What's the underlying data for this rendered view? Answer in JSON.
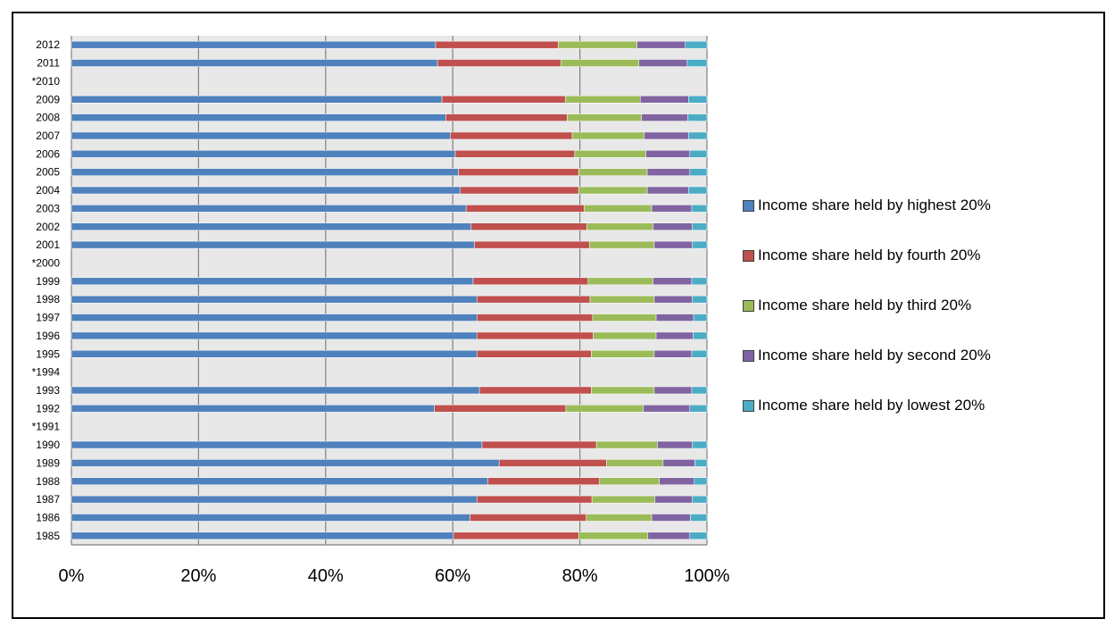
{
  "chart_data": {
    "type": "bar",
    "orientation": "horizontal",
    "stacked": "percent",
    "categories": [
      "2012",
      "2011",
      "*2010",
      "2009",
      "2008",
      "2007",
      "2006",
      "2005",
      "2004",
      "2003",
      "2002",
      "2001",
      "*2000",
      "1999",
      "1998",
      "1997",
      "1996",
      "1995",
      "*1994",
      "1993",
      "1992",
      "*1991",
      "1990",
      "1989",
      "1988",
      "1987",
      "1986",
      "1985"
    ],
    "series": [
      {
        "name": "Income share held by highest 20%",
        "color": "#4F81BD",
        "values": [
          57.3,
          57.6,
          null,
          58.3,
          58.9,
          59.6,
          60.4,
          60.9,
          61.2,
          62.1,
          62.9,
          63.4,
          null,
          63.2,
          63.8,
          63.8,
          63.8,
          63.8,
          null,
          64.2,
          57.1,
          null,
          64.6,
          67.3,
          65.5,
          63.8,
          62.7,
          60.1
        ]
      },
      {
        "name": "Income share held by fourth 20%",
        "color": "#C0504D",
        "values": [
          19.3,
          19.4,
          null,
          19.4,
          19.1,
          19.2,
          18.8,
          18.9,
          18.6,
          18.6,
          18.2,
          18.1,
          null,
          18.1,
          17.8,
          18.2,
          18.3,
          18.0,
          null,
          17.6,
          20.7,
          null,
          18.0,
          16.9,
          17.6,
          18.1,
          18.3,
          19.7
        ]
      },
      {
        "name": "Income share held by third 20%",
        "color": "#9BBB59",
        "values": [
          12.4,
          12.3,
          null,
          11.8,
          11.7,
          11.3,
          11.2,
          10.8,
          10.8,
          10.6,
          10.4,
          10.2,
          null,
          10.2,
          10.1,
          10.0,
          9.9,
          9.9,
          null,
          9.9,
          12.2,
          null,
          9.6,
          8.9,
          9.4,
          9.9,
          10.3,
          10.9
        ]
      },
      {
        "name": "Income share held by second 20%",
        "color": "#8064A2",
        "values": [
          7.6,
          7.6,
          null,
          7.6,
          7.3,
          7.0,
          6.9,
          6.7,
          6.5,
          6.3,
          6.2,
          6.0,
          null,
          6.1,
          6.0,
          5.9,
          5.8,
          5.9,
          null,
          5.9,
          7.3,
          null,
          5.5,
          5.0,
          5.5,
          5.9,
          6.1,
          6.6
        ]
      },
      {
        "name": "Income share held by lowest 20%",
        "color": "#4BACC6",
        "values": [
          3.4,
          3.1,
          null,
          2.9,
          3.0,
          2.9,
          2.7,
          2.7,
          2.9,
          2.4,
          2.3,
          2.3,
          null,
          2.4,
          2.3,
          2.1,
          2.2,
          2.4,
          null,
          2.4,
          2.7,
          null,
          2.3,
          1.9,
          2.0,
          2.3,
          2.6,
          2.7
        ]
      }
    ],
    "xticks": [
      "0%",
      "20%",
      "40%",
      "60%",
      "80%",
      "100%"
    ],
    "xlim": [
      0,
      100
    ],
    "grid": true,
    "legend": "right"
  }
}
